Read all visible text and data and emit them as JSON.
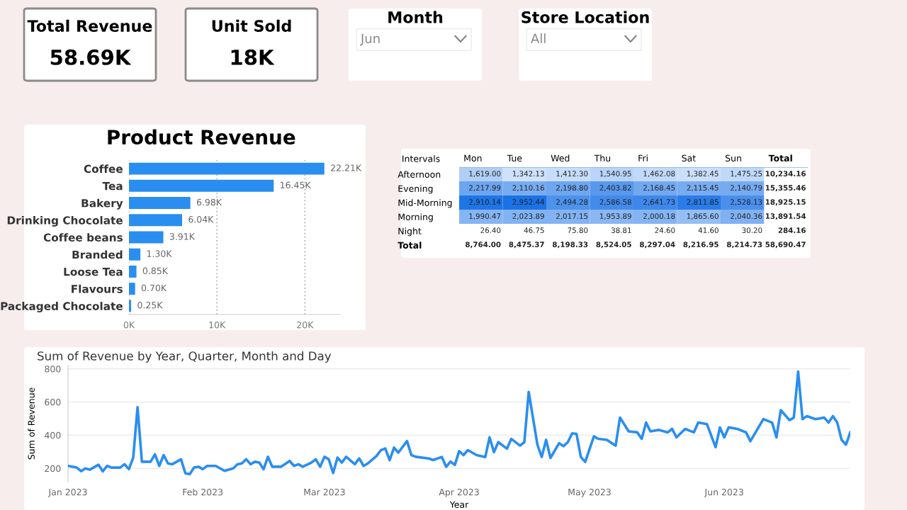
{
  "chart_data": [
    {
      "type": "other",
      "title": "Total Revenue",
      "annotations": [
        "58.69K"
      ]
    },
    {
      "type": "other",
      "title": "Unit Sold",
      "annotations": [
        "18K"
      ]
    },
    {
      "type": "other",
      "title": "Month",
      "annotations": [
        "Jun"
      ]
    },
    {
      "type": "other",
      "title": "Store Location",
      "annotations": [
        "All"
      ]
    },
    {
      "type": "bar",
      "orientation": "horizontal",
      "title": "Product Revenue",
      "categories": [
        "Coffee",
        "Tea",
        "Bakery",
        "Drinking Chocolate",
        "Coffee beans",
        "Branded",
        "Loose Tea",
        "Flavours",
        "Packaged Chocolate"
      ],
      "values": [
        22.21,
        16.45,
        6.98,
        6.04,
        3.91,
        1.3,
        0.85,
        0.7,
        0.25
      ],
      "value_labels": [
        "22.21K",
        "16.45K",
        "6.98K",
        "6.04K",
        "3.91K",
        "1.30K",
        "0.85K",
        "0.70K",
        "0.25K"
      ],
      "color": "#2a8ef0",
      "xlim": [
        0,
        24
      ],
      "xticks": [
        {
          "value": 0,
          "label": "0K"
        },
        {
          "value": 10,
          "label": "10K"
        },
        {
          "value": 20,
          "label": "20K"
        }
      ],
      "grid": "x"
    },
    {
      "type": "heatmap",
      "ylabel": "Intervals",
      "categories": [
        "Mon",
        "Tue",
        "Wed",
        "Thu",
        "Fri",
        "Sat",
        "Sun",
        "Total"
      ],
      "y_categories": [
        "Afternoon",
        "Evening",
        "Mid-Morning",
        "Morning",
        "Night",
        "Total"
      ],
      "cells": [
        [
          1619.0,
          1342.13,
          1412.3,
          1540.95,
          1462.08,
          1382.45,
          1475.25,
          null
        ],
        [
          2217.99,
          2110.16,
          2198.8,
          2403.82,
          2168.45,
          2115.45,
          2140.79,
          null
        ],
        [
          2910.14,
          2952.44,
          2494.28,
          2586.58,
          2641.73,
          2811.85,
          2528.13,
          null
        ],
        [
          1990.47,
          2023.89,
          2017.15,
          1953.89,
          2000.18,
          1865.6,
          2040.36,
          null
        ],
        [
          null,
          null,
          null,
          null,
          null,
          null,
          null,
          null
        ],
        [
          null,
          null,
          null,
          null,
          null,
          null,
          null,
          null
        ]
      ],
      "cell_labels": [
        [
          "1,619.00",
          "1,342.13",
          "1,412.30",
          "1,540.95",
          "1,462.08",
          "1,382.45",
          "1,475.25",
          "10,234.16"
        ],
        [
          "2,217.99",
          "2,110.16",
          "2,198.80",
          "2,403.82",
          "2,168.45",
          "2,115.45",
          "2,140.79",
          "15,355.46"
        ],
        [
          "2,910.14",
          "2,952.44",
          "2,494.28",
          "2,586.58",
          "2,641.73",
          "2,811.85",
          "2,528.13",
          "18,925.15"
        ],
        [
          "1,990.47",
          "2,023.89",
          "2,017.15",
          "1,953.89",
          "2,000.18",
          "1,865.60",
          "2,040.36",
          "13,891.54"
        ],
        [
          "26.40",
          "46.75",
          "75.80",
          "38.81",
          "24.60",
          "41.60",
          "30.20",
          "284.16"
        ],
        [
          "8,764.00",
          "8,475.37",
          "8,198.33",
          "8,524.05",
          "8,297.04",
          "8,216.95",
          "8,214.73",
          "58,690.47"
        ]
      ]
    },
    {
      "type": "line",
      "title": "Sum of Revenue by Year, Quarter, Month and Day",
      "xlabel": "Year",
      "ylabel": "Sum of Revenue",
      "color": "#2a8ef0",
      "grid": "y",
      "ylim": [
        120,
        820
      ],
      "yticks": [
        200,
        400,
        600,
        800
      ],
      "xlim": [
        "2023-01-01",
        "2023-06-30"
      ],
      "xticks": [
        {
          "value": "2023-01-01",
          "label": "Jan 2023"
        },
        {
          "value": "2023-02-01",
          "label": "Feb 2023"
        },
        {
          "value": "2023-03-01",
          "label": "Mar 2023"
        },
        {
          "value": "2023-04-01",
          "label": "Apr 2023"
        },
        {
          "value": "2023-05-01",
          "label": "May 2023"
        },
        {
          "value": "2023-06-01",
          "label": "Jun 2023"
        }
      ],
      "x": [
        "2023-01-01",
        "2023-01-03",
        "2023-01-04",
        "2023-01-05",
        "2023-01-06",
        "2023-01-08",
        "2023-01-09",
        "2023-01-10",
        "2023-01-11",
        "2023-01-13",
        "2023-01-14",
        "2023-01-15",
        "2023-01-16",
        "2023-01-17",
        "2023-01-18",
        "2023-01-20",
        "2023-01-21",
        "2023-01-22",
        "2023-01-23",
        "2023-01-24",
        "2023-01-25",
        "2023-01-27",
        "2023-01-28",
        "2023-01-29",
        "2023-01-30",
        "2023-01-31",
        "2023-02-01",
        "2023-02-02",
        "2023-02-04",
        "2023-02-05",
        "2023-02-06",
        "2023-02-08",
        "2023-02-09",
        "2023-02-10",
        "2023-02-11",
        "2023-02-12",
        "2023-02-13",
        "2023-02-14",
        "2023-02-15",
        "2023-02-16",
        "2023-02-17",
        "2023-02-19",
        "2023-02-21",
        "2023-02-22",
        "2023-02-23",
        "2023-02-24",
        "2023-02-26",
        "2023-02-27",
        "2023-02-28",
        "2023-03-01",
        "2023-03-02",
        "2023-03-03",
        "2023-03-04",
        "2023-03-05",
        "2023-03-06",
        "2023-03-08",
        "2023-03-09",
        "2023-03-10",
        "2023-03-11",
        "2023-03-13",
        "2023-03-14",
        "2023-03-15",
        "2023-03-16",
        "2023-03-17",
        "2023-03-18",
        "2023-03-20",
        "2023-03-21",
        "2023-03-22",
        "2023-03-25",
        "2023-03-26",
        "2023-03-28",
        "2023-03-29",
        "2023-03-30",
        "2023-03-31",
        "2023-04-01",
        "2023-04-02",
        "2023-04-03",
        "2023-04-05",
        "2023-04-07",
        "2023-04-08",
        "2023-04-09",
        "2023-04-10",
        "2023-04-12",
        "2023-04-13",
        "2023-04-15",
        "2023-04-16",
        "2023-04-17",
        "2023-04-19",
        "2023-04-20",
        "2023-04-21",
        "2023-04-22",
        "2023-04-24",
        "2023-04-25",
        "2023-04-26",
        "2023-04-27",
        "2023-04-28",
        "2023-04-29",
        "2023-04-30",
        "2023-05-02",
        "2023-05-03",
        "2023-05-05",
        "2023-05-07",
        "2023-05-08",
        "2023-05-10",
        "2023-05-12",
        "2023-05-13",
        "2023-05-14",
        "2023-05-15",
        "2023-05-17",
        "2023-05-19",
        "2023-05-20",
        "2023-05-21",
        "2023-05-23",
        "2023-05-25",
        "2023-05-26",
        "2023-05-28",
        "2023-05-30",
        "2023-05-31",
        "2023-06-01",
        "2023-06-02",
        "2023-06-04",
        "2023-06-06",
        "2023-06-07",
        "2023-06-10",
        "2023-06-12",
        "2023-06-13",
        "2023-06-14",
        "2023-06-16",
        "2023-06-17",
        "2023-06-18",
        "2023-06-19",
        "2023-06-20",
        "2023-06-22",
        "2023-06-24",
        "2023-06-25",
        "2023-06-26",
        "2023-06-27",
        "2023-06-28",
        "2023-06-29",
        "2023-06-30"
      ],
      "values": [
        215,
        205,
        183,
        200,
        192,
        222,
        182,
        215,
        205,
        205,
        225,
        195,
        265,
        569,
        240,
        240,
        285,
        215,
        280,
        230,
        225,
        255,
        170,
        165,
        205,
        210,
        195,
        215,
        215,
        200,
        185,
        200,
        225,
        230,
        255,
        225,
        240,
        235,
        195,
        270,
        210,
        210,
        245,
        215,
        225,
        210,
        235,
        255,
        210,
        270,
        255,
        172,
        265,
        235,
        270,
        225,
        260,
        215,
        230,
        275,
        310,
        320,
        250,
        325,
        295,
        365,
        280,
        270,
        260,
        250,
        269,
        209,
        241,
        221,
        304,
        280,
        310,
        280,
        268,
        387,
        298,
        358,
        319,
        378,
        337,
        358,
        661,
        343,
        269,
        372,
        263,
        352,
        334,
        358,
        411,
        408,
        269,
        239,
        393,
        378,
        372,
        337,
        506,
        423,
        417,
        378,
        476,
        423,
        432,
        417,
        438,
        387,
        438,
        417,
        476,
        467,
        328,
        447,
        387,
        447,
        438,
        417,
        364,
        497,
        476,
        387,
        551,
        491,
        506,
        783,
        497,
        515,
        497,
        506,
        476,
        515,
        476,
        372,
        343,
        417
      ]
    }
  ]
}
